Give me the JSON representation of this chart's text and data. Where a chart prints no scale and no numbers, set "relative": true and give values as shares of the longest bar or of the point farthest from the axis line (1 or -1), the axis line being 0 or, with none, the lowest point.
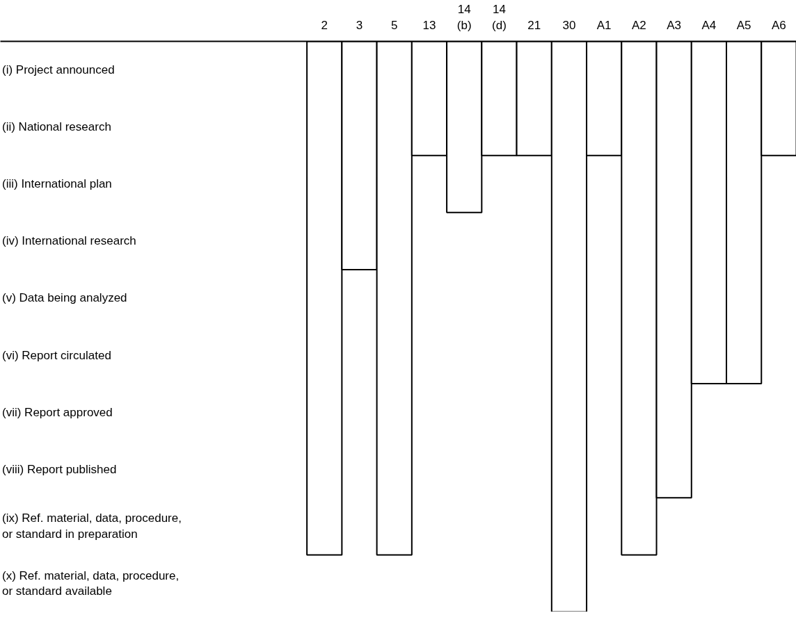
{
  "chart_data": {
    "type": "bar",
    "categories": [
      "2",
      "3",
      "5",
      "13",
      "14\n(b)",
      "14\n(d)",
      "21",
      "30",
      "A1",
      "A2",
      "A3",
      "A4",
      "A5",
      "A6"
    ],
    "values": [
      -0.9,
      -0.4,
      -0.9,
      -0.2,
      -0.3,
      -0.2,
      -0.2,
      -1,
      -0.2,
      -0.9,
      -0.8,
      -0.6,
      -0.6,
      -0.2
    ],
    "relative": true,
    "color": "#ffffff",
    "annotations": [
      "(i) Project announced",
      "(ii) National research",
      "(iii) International plan",
      "(iv) International research",
      "(v) Data being analyzed",
      "(vi) Report circulated",
      "(vii) Report approved",
      "(viii) Report published",
      "(ix) Ref. material, data, procedure,\nor standard in preparation",
      "(x) Ref. material, data, procedure,\nor standard available"
    ],
    "grid": false
  }
}
